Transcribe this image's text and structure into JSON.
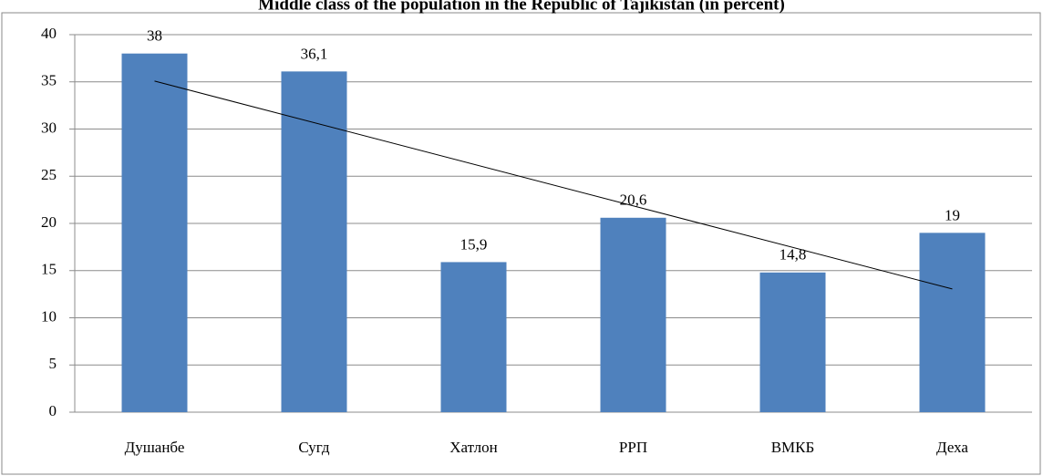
{
  "chart_data": {
    "type": "bar",
    "title": "Middle class of the population in the Republic of Tajikistan (in percent)",
    "categories": [
      "Душанбе",
      "Сугд",
      "Хатлон",
      "РРП",
      "ВМКБ",
      "Деха"
    ],
    "values": [
      38,
      36.1,
      15.9,
      20.6,
      14.8,
      19
    ],
    "value_labels": [
      "38",
      "36,1",
      "15,9",
      "20,6",
      "14,8",
      "19"
    ],
    "color": "#4f81bd",
    "ylim": [
      0,
      40
    ],
    "yticks": [
      0,
      5,
      10,
      15,
      20,
      25,
      30,
      35,
      40
    ],
    "grid": true,
    "trendline": "linear"
  }
}
